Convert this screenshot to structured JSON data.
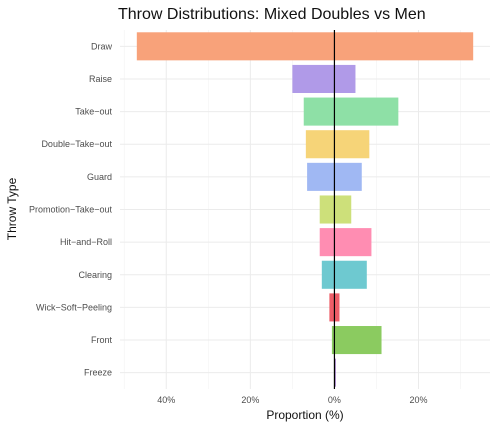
{
  "chart_data": {
    "type": "bar",
    "orientation": "horizontal",
    "title": "Throw Distributions: Mixed Doubles vs Men",
    "xlabel": "Proportion (%)",
    "ylabel": "Throw Type",
    "xlim": [
      -51,
      37
    ],
    "x_ticks": [
      -40,
      -20,
      0,
      20
    ],
    "x_tick_labels": [
      "40%",
      "20%",
      "0%",
      "20%"
    ],
    "grid": true,
    "legend": "none",
    "zero_line": true,
    "categories": [
      "Draw",
      "Raise",
      "Take-out",
      "Double-Take-out",
      "Guard",
      "Promotion-Take-out",
      "Hit-and-Roll",
      "Clearing",
      "Wick-Soft-Peeling",
      "Front",
      "Freeze"
    ],
    "series": [
      {
        "values": [
          -47,
          -10,
          -7.3,
          -6.8,
          -6.5,
          -3.5,
          -3.5,
          -3.0,
          -1.2,
          -0.6,
          -0.1
        ]
      },
      {
        "values": [
          33,
          5.0,
          15.2,
          8.3,
          6.5,
          4.0,
          8.8,
          7.7,
          1.2,
          11.2,
          0.3
        ]
      }
    ],
    "colors": [
      "#F8A27A",
      "#B09AE8",
      "#8EE0A6",
      "#F6D478",
      "#A0B8F3",
      "#CDE07A",
      "#FF8DB2",
      "#6EC9D0",
      "#EE5D68",
      "#8BCB60",
      "#8B5DB5"
    ]
  }
}
